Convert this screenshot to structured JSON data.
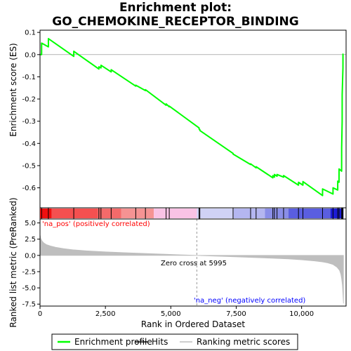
{
  "chart_data": {
    "type": "line",
    "title_lines": [
      "Enrichment plot:",
      "GO_CHEMOKINE_RECEPTOR_BINDING"
    ],
    "xlabel": "Rank in Ordered Dataset",
    "xlim": [
      0,
      11700
    ],
    "xticks": [
      0,
      2500,
      5000,
      7500,
      10000
    ],
    "xtick_labels": [
      "0",
      "2,500",
      "5,000",
      "7,500",
      "10,000"
    ],
    "top_panel": {
      "ylabel": "Enrichment score (ES)",
      "ylim": [
        -0.69,
        0.11
      ],
      "yticks": [
        0.1,
        0.0,
        -0.1,
        -0.2,
        -0.3,
        -0.4,
        -0.5,
        -0.6
      ],
      "ytick_labels": [
        "0.1",
        "0.0",
        "-0.1",
        "-0.2",
        "-0.3",
        "-0.4",
        "-0.5",
        "-0.6"
      ],
      "series": [
        {
          "name": "Enrichment profile",
          "color": "#00ff00",
          "x": [
            0,
            60,
            61,
            320,
            321,
            1290,
            1291,
            2250,
            2251,
            2330,
            2331,
            2720,
            2721,
            3660,
            3661,
            4030,
            4031,
            4820,
            4821,
            4940,
            4941,
            6080,
            6081,
            6110,
            6111,
            7380,
            7381,
            8050,
            8051,
            8260,
            8261,
            8900,
            8901,
            8960,
            8961,
            9060,
            9061,
            9310,
            9311,
            9880,
            9881,
            10050,
            10051,
            10800,
            10801,
            11200,
            11201,
            11380,
            11381,
            11430,
            11431,
            11530,
            11531,
            11550,
            11551,
            11580,
            11581,
            11600
          ],
          "y": [
            0.0,
            0.0,
            0.052,
            0.035,
            0.072,
            -0.008,
            0.015,
            -0.065,
            -0.055,
            -0.06,
            -0.048,
            -0.078,
            -0.068,
            -0.142,
            -0.138,
            -0.162,
            -0.158,
            -0.228,
            -0.222,
            -0.235,
            -0.232,
            -0.33,
            -0.335,
            -0.338,
            -0.342,
            -0.445,
            -0.448,
            -0.495,
            -0.492,
            -0.51,
            -0.505,
            -0.555,
            -0.545,
            -0.552,
            -0.54,
            -0.548,
            -0.54,
            -0.552,
            -0.545,
            -0.588,
            -0.575,
            -0.588,
            -0.572,
            -0.635,
            -0.605,
            -0.628,
            -0.6,
            -0.61,
            -0.57,
            -0.575,
            -0.515,
            -0.525,
            -0.42,
            -0.3,
            -0.18,
            -0.06,
            0.002,
            0.002
          ]
        }
      ],
      "hits_label": "Hits",
      "hits": [
        60,
        320,
        1290,
        2250,
        2330,
        2720,
        3660,
        4030,
        4820,
        4940,
        6080,
        6110,
        7380,
        8050,
        8260,
        8900,
        8960,
        9060,
        9310,
        9880,
        10050,
        10800,
        11200,
        11380,
        11430,
        11530,
        11550,
        11580
      ]
    },
    "bottom_panel": {
      "ylabel": "Ranked list metric (PreRanked)",
      "ylim": [
        -7.8,
        5.6
      ],
      "yticks": [
        5.0,
        2.5,
        0.0,
        -2.5,
        -5.0,
        -7.5
      ],
      "ytick_labels": [
        "5.0",
        "2.5",
        "0.0",
        "-2.5",
        "-5.0",
        "-7.5"
      ],
      "series_name": "Ranking metric scores",
      "series_color": "#bebebe",
      "x": [
        0,
        30,
        80,
        150,
        250,
        400,
        600,
        900,
        1300,
        1800,
        2500,
        3200,
        4000,
        4800,
        5500,
        5995,
        6500,
        7200,
        8000,
        8800,
        9500,
        10000,
        10500,
        10800,
        11000,
        11200,
        11350,
        11450,
        11500,
        11530,
        11560,
        11580,
        11600
      ],
      "y": [
        3.2,
        2.6,
        2.2,
        1.9,
        1.65,
        1.45,
        1.25,
        1.05,
        0.85,
        0.7,
        0.55,
        0.42,
        0.3,
        0.18,
        0.07,
        0.0,
        -0.08,
        -0.18,
        -0.3,
        -0.42,
        -0.55,
        -0.68,
        -0.85,
        -1.0,
        -1.15,
        -1.4,
        -1.8,
        -2.3,
        -2.9,
        -3.6,
        -4.6,
        -6.0,
        -7.4
      ],
      "zero_cross_label": "Zero cross at 5995",
      "zero_cross_x": 5995,
      "pos_label": "'na_pos' (positively correlated)",
      "neg_label": "'na_neg' (negatively correlated)",
      "pos_label_color": "#ff0000",
      "neg_label_color": "#0000ff"
    },
    "colorbar": {
      "segments": [
        {
          "from": 0,
          "to": 450,
          "color": "#f01010"
        },
        {
          "from": 450,
          "to": 2200,
          "color": "#f45050"
        },
        {
          "from": 2200,
          "to": 3100,
          "color": "#f46a6a"
        },
        {
          "from": 3100,
          "to": 4350,
          "color": "#f59393"
        },
        {
          "from": 4350,
          "to": 5995,
          "color": "#f9c3e5"
        },
        {
          "from": 5995,
          "to": 7400,
          "color": "#d0d2f5"
        },
        {
          "from": 7400,
          "to": 8600,
          "color": "#b4b6f0"
        },
        {
          "from": 8600,
          "to": 9500,
          "color": "#8a8ee8"
        },
        {
          "from": 9500,
          "to": 11100,
          "color": "#5a5ee0"
        },
        {
          "from": 11100,
          "to": 11600,
          "color": "#1c1cd6"
        }
      ]
    },
    "legend": {
      "placement": "bottom",
      "entries": [
        {
          "label": "Enrichment profile",
          "color": "#00ff00",
          "kind": "line"
        },
        {
          "label": "Hits",
          "color": "#000000",
          "kind": "line"
        },
        {
          "label": "Ranking metric scores",
          "color": "#bebebe",
          "kind": "line"
        }
      ]
    }
  }
}
